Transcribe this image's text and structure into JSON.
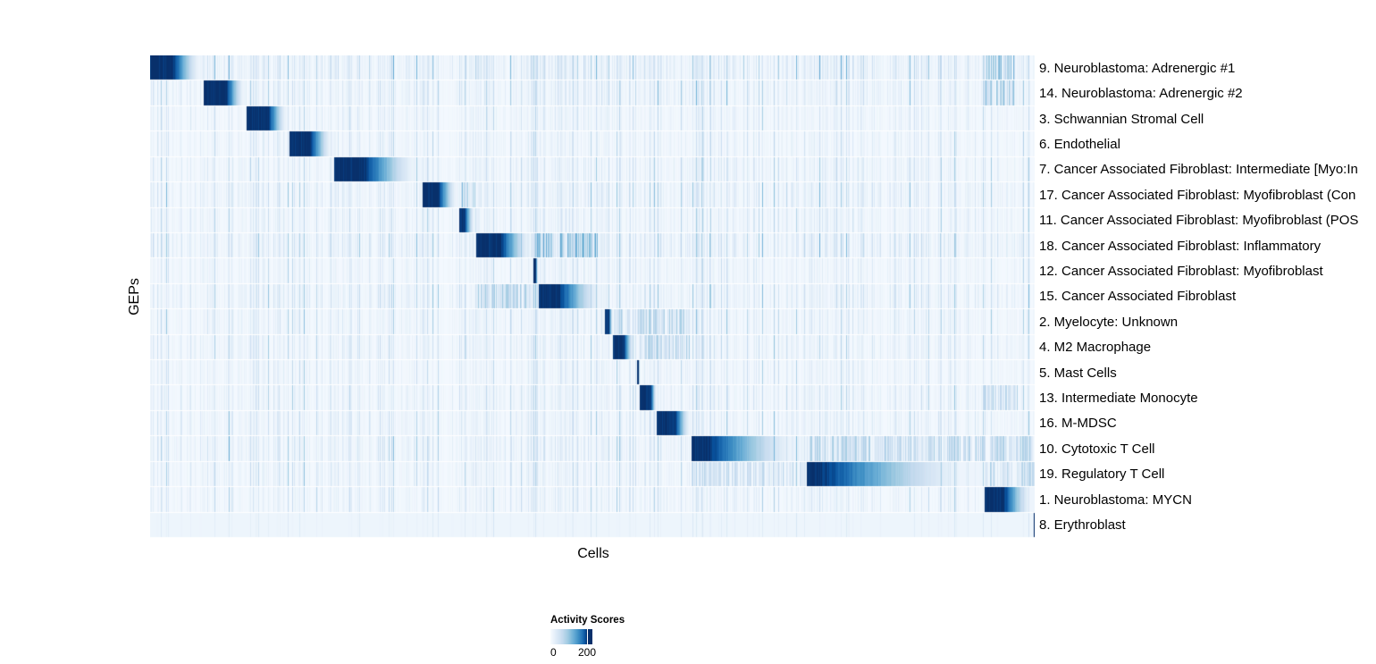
{
  "page": {
    "background": "#ffffff"
  },
  "chart_data": {
    "type": "heatmap",
    "xlabel": "Cells",
    "ylabel": "GEPs",
    "description": "Diagonal-block heatmap of GEP activity scores per cell; cells ordered by assigned GEP, activity fades left-to-right within each block; sparse vertical streaks of cross-activity elsewhere.",
    "colormap": {
      "name": "Blues",
      "stops": [
        "#f7fbff",
        "#deebf7",
        "#c6dbef",
        "#9ecae1",
        "#6baed6",
        "#4292c6",
        "#2171b5",
        "#08519c",
        "#08306b"
      ]
    },
    "legend": {
      "title": "Activity Scores",
      "tick_labels": [
        "0",
        "200"
      ],
      "vmin": 0,
      "vmax_tick": 200,
      "tick_position": 0.87
    },
    "axis_ranges": {
      "x_fraction": [
        0,
        1
      ],
      "n_rows": 19
    },
    "rows": [
      {
        "label": "9. Neuroblastoma: Adrenergic #1",
        "block_start": 0.0,
        "plateau_end": 0.0253,
        "block_end": 0.0596,
        "noise": 0.5,
        "base": 0.02,
        "echoes": [
          [
            0.941,
            0.977,
            0.5
          ]
        ]
      },
      {
        "label": "14. Neuroblastoma: Adrenergic #2",
        "block_start": 0.0596,
        "plateau_end": 0.0859,
        "block_end": 0.1081,
        "noise": 0.4,
        "base": 0.02,
        "echoes": [
          [
            0.941,
            0.977,
            0.45
          ]
        ]
      },
      {
        "label": "3. Schwannian Stromal Cell",
        "block_start": 0.1081,
        "plateau_end": 0.1333,
        "block_end": 0.1566,
        "noise": 0.3,
        "base": 0.02,
        "echoes": []
      },
      {
        "label": "6. Endothelial",
        "block_start": 0.1566,
        "plateau_end": 0.1808,
        "block_end": 0.2071,
        "noise": 0.3,
        "base": 0.02,
        "echoes": []
      },
      {
        "label": "7. Cancer Associated Fibroblast: Intermediate [Myo:In",
        "block_start": 0.2071,
        "plateau_end": 0.2414,
        "block_end": 0.3071,
        "noise": 0.35,
        "base": 0.02,
        "echoes": []
      },
      {
        "label": "17. Cancer Associated Fibroblast: Myofibroblast (Con",
        "block_start": 0.3071,
        "plateau_end": 0.3253,
        "block_end": 0.3485,
        "noise": 0.4,
        "base": 0.02,
        "echoes": [
          [
            0.349,
            0.367,
            0.5
          ]
        ]
      },
      {
        "label": "11. Cancer Associated Fibroblast: Myofibroblast (POS",
        "block_start": 0.3485,
        "plateau_end": 0.3546,
        "block_end": 0.3677,
        "noise": 0.35,
        "base": 0.02,
        "echoes": []
      },
      {
        "label": "18. Cancer Associated Fibroblast: Inflammatory",
        "block_start": 0.3677,
        "plateau_end": 0.396,
        "block_end": 0.4333,
        "noise": 0.45,
        "base": 0.02,
        "echoes": [
          [
            0.433,
            0.507,
            0.55
          ]
        ]
      },
      {
        "label": "12. Cancer Associated Fibroblast: Myofibroblast",
        "block_start": 0.4333,
        "plateau_end": 0.4354,
        "block_end": 0.4384,
        "noise": 0.3,
        "base": 0.02,
        "echoes": []
      },
      {
        "label": "15. Cancer Associated Fibroblast",
        "block_start": 0.4384,
        "plateau_end": 0.4616,
        "block_end": 0.5141,
        "noise": 0.4,
        "base": 0.02,
        "echoes": [
          [
            0.368,
            0.433,
            0.4
          ]
        ]
      },
      {
        "label": "2. Myelocyte: Unknown",
        "block_start": 0.5141,
        "plateau_end": 0.5182,
        "block_end": 0.5232,
        "noise": 0.35,
        "base": 0.02,
        "echoes": [
          [
            0.524,
            0.61,
            0.35
          ]
        ]
      },
      {
        "label": "4. M2 Macrophage",
        "block_start": 0.5232,
        "plateau_end": 0.5354,
        "block_end": 0.5475,
        "noise": 0.35,
        "base": 0.02,
        "echoes": [
          [
            0.553,
            0.61,
            0.35
          ]
        ]
      },
      {
        "label": "5. Mast Cells",
        "block_start": 0.5495,
        "plateau_end": 0.5515,
        "block_end": 0.5535,
        "noise": 0.3,
        "base": 0.02,
        "echoes": []
      },
      {
        "label": "13. Intermediate Monocyte",
        "block_start": 0.5535,
        "plateau_end": 0.5657,
        "block_end": 0.5727,
        "noise": 0.35,
        "base": 0.02,
        "echoes": [
          [
            0.941,
            0.98,
            0.35
          ]
        ]
      },
      {
        "label": "16. M-MDSC",
        "block_start": 0.5727,
        "plateau_end": 0.593,
        "block_end": 0.6121,
        "noise": 0.35,
        "base": 0.02,
        "echoes": []
      },
      {
        "label": "10. Cytotoxic T Cell",
        "block_start": 0.6121,
        "plateau_end": 0.6293,
        "block_end": 0.7424,
        "noise": 0.4,
        "base": 0.02,
        "echoes": [
          [
            0.742,
            1.0,
            0.35
          ]
        ]
      },
      {
        "label": "19. Regulatory T Cell",
        "block_start": 0.7424,
        "plateau_end": 0.7556,
        "block_end": 0.9434,
        "noise": 0.35,
        "base": 0.02,
        "echoes": [
          [
            0.612,
            0.742,
            0.3
          ],
          [
            0.944,
            1.0,
            0.35
          ]
        ]
      },
      {
        "label": "1. Neuroblastoma: MYCN",
        "block_start": 0.9434,
        "plateau_end": 0.9646,
        "block_end": 0.999,
        "noise": 0.3,
        "base": 0.02,
        "echoes": []
      },
      {
        "label": "8. Erythroblast",
        "block_start": 0.998,
        "plateau_end": 0.999,
        "block_end": 1.0,
        "noise": 0.15,
        "base": 0.05,
        "echoes": []
      }
    ]
  }
}
